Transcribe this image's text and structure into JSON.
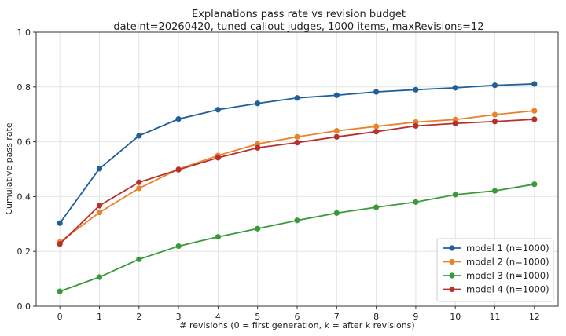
{
  "chart_data": {
    "type": "line",
    "title": "Explanations pass rate vs revision budget",
    "subtitle": "dateint=20260420, tuned callout judges, 1000 items, maxRevisions=12",
    "xlabel": "# revisions (0 = first generation, k = after k revisions)",
    "ylabel": "Cumulative pass rate",
    "x": [
      0,
      1,
      2,
      3,
      4,
      5,
      6,
      7,
      8,
      9,
      10,
      11,
      12
    ],
    "xlim": [
      -0.6,
      12.6
    ],
    "ylim": [
      0.0,
      1.0
    ],
    "yticks": [
      "0.0",
      "0.2",
      "0.4",
      "0.6",
      "0.8",
      "1.0"
    ],
    "grid": true,
    "legend_position": "bottom-right",
    "series": [
      {
        "name": "model 1 (n=1000)",
        "color": "#1f5f9a",
        "values": [
          0.303,
          0.502,
          0.622,
          0.683,
          0.717,
          0.74,
          0.76,
          0.77,
          0.782,
          0.79,
          0.797,
          0.806,
          0.811
        ]
      },
      {
        "name": "model 2 (n=1000)",
        "color": "#e8822b",
        "values": [
          0.234,
          0.342,
          0.43,
          0.5,
          0.55,
          0.592,
          0.618,
          0.64,
          0.656,
          0.672,
          0.681,
          0.699,
          0.713
        ]
      },
      {
        "name": "model 3 (n=1000)",
        "color": "#3a9a3a",
        "values": [
          0.054,
          0.106,
          0.171,
          0.219,
          0.253,
          0.283,
          0.313,
          0.34,
          0.361,
          0.38,
          0.407,
          0.421,
          0.445
        ]
      },
      {
        "name": "model 4 (n=1000)",
        "color": "#b8302e",
        "values": [
          0.227,
          0.367,
          0.452,
          0.498,
          0.542,
          0.578,
          0.597,
          0.618,
          0.637,
          0.658,
          0.667,
          0.674,
          0.682
        ]
      }
    ]
  }
}
